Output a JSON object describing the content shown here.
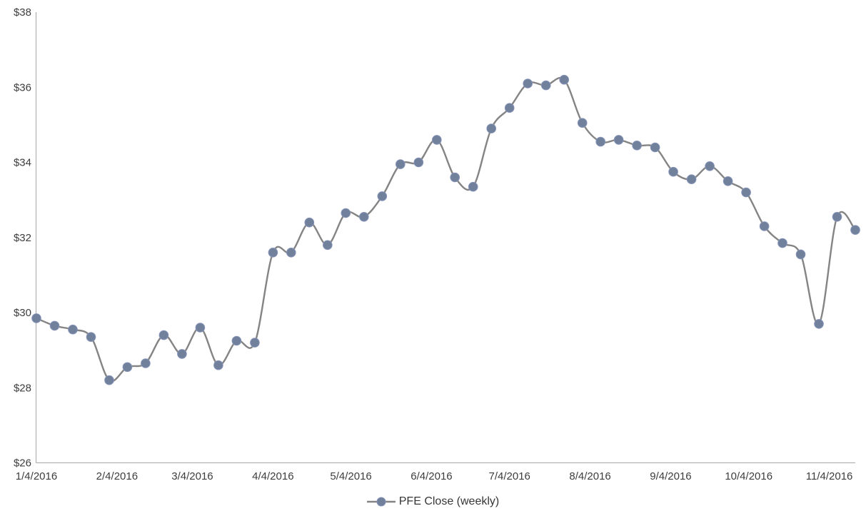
{
  "chart_data": {
    "type": "line",
    "title": "",
    "xlabel": "",
    "ylabel": "",
    "grid": false,
    "smoothed": true,
    "legend_position": "bottom",
    "ylim": [
      26,
      38
    ],
    "series": [
      {
        "name": "PFE Close (weekly)",
        "x": [
          "1/4/2016",
          "1/11/2016",
          "1/18/2016",
          "1/25/2016",
          "2/1/2016",
          "2/8/2016",
          "2/15/2016",
          "2/22/2016",
          "2/29/2016",
          "3/7/2016",
          "3/14/2016",
          "3/21/2016",
          "3/28/2016",
          "4/4/2016",
          "4/11/2016",
          "4/18/2016",
          "4/25/2016",
          "5/2/2016",
          "5/9/2016",
          "5/16/2016",
          "5/23/2016",
          "5/30/2016",
          "6/6/2016",
          "6/13/2016",
          "6/20/2016",
          "6/27/2016",
          "7/4/2016",
          "7/11/2016",
          "7/18/2016",
          "7/25/2016",
          "8/1/2016",
          "8/8/2016",
          "8/15/2016",
          "8/22/2016",
          "8/29/2016",
          "9/5/2016",
          "9/12/2016",
          "9/19/2016",
          "9/26/2016",
          "10/3/2016",
          "10/10/2016",
          "10/17/2016",
          "10/24/2016",
          "10/31/2016",
          "11/7/2016",
          "11/14/2016"
        ],
        "values": [
          29.85,
          29.65,
          29.55,
          29.35,
          28.2,
          28.55,
          28.65,
          29.4,
          28.9,
          29.6,
          28.6,
          29.25,
          29.2,
          31.6,
          31.6,
          32.4,
          31.8,
          32.65,
          32.55,
          33.1,
          33.95,
          34.0,
          34.6,
          33.6,
          33.35,
          34.9,
          35.45,
          36.1,
          36.05,
          36.2,
          35.05,
          34.55,
          34.6,
          34.45,
          34.4,
          33.75,
          33.55,
          33.9,
          33.5,
          33.2,
          32.3,
          31.85,
          31.55,
          29.7,
          32.55,
          32.2
        ]
      }
    ],
    "x_ticks": [
      "1/4/2016",
      "2/4/2016",
      "3/4/2016",
      "4/4/2016",
      "5/4/2016",
      "6/4/2016",
      "7/4/2016",
      "8/4/2016",
      "9/4/2016",
      "10/4/2016",
      "11/4/2016"
    ],
    "y_ticks": [
      {
        "label": "$26",
        "value": 26
      },
      {
        "label": "$28",
        "value": 28
      },
      {
        "label": "$30",
        "value": 30
      },
      {
        "label": "$32",
        "value": 32
      },
      {
        "label": "$34",
        "value": 34
      },
      {
        "label": "$36",
        "value": 36
      },
      {
        "label": "$38",
        "value": 38
      }
    ],
    "colors": {
      "line": "#848484",
      "marker_fill": "#71809b",
      "marker_edge": "#8593b8",
      "axis": "#a6a6a6",
      "text": "#3d3d3d"
    }
  },
  "legend": {
    "label": "PFE Close (weekly)"
  }
}
